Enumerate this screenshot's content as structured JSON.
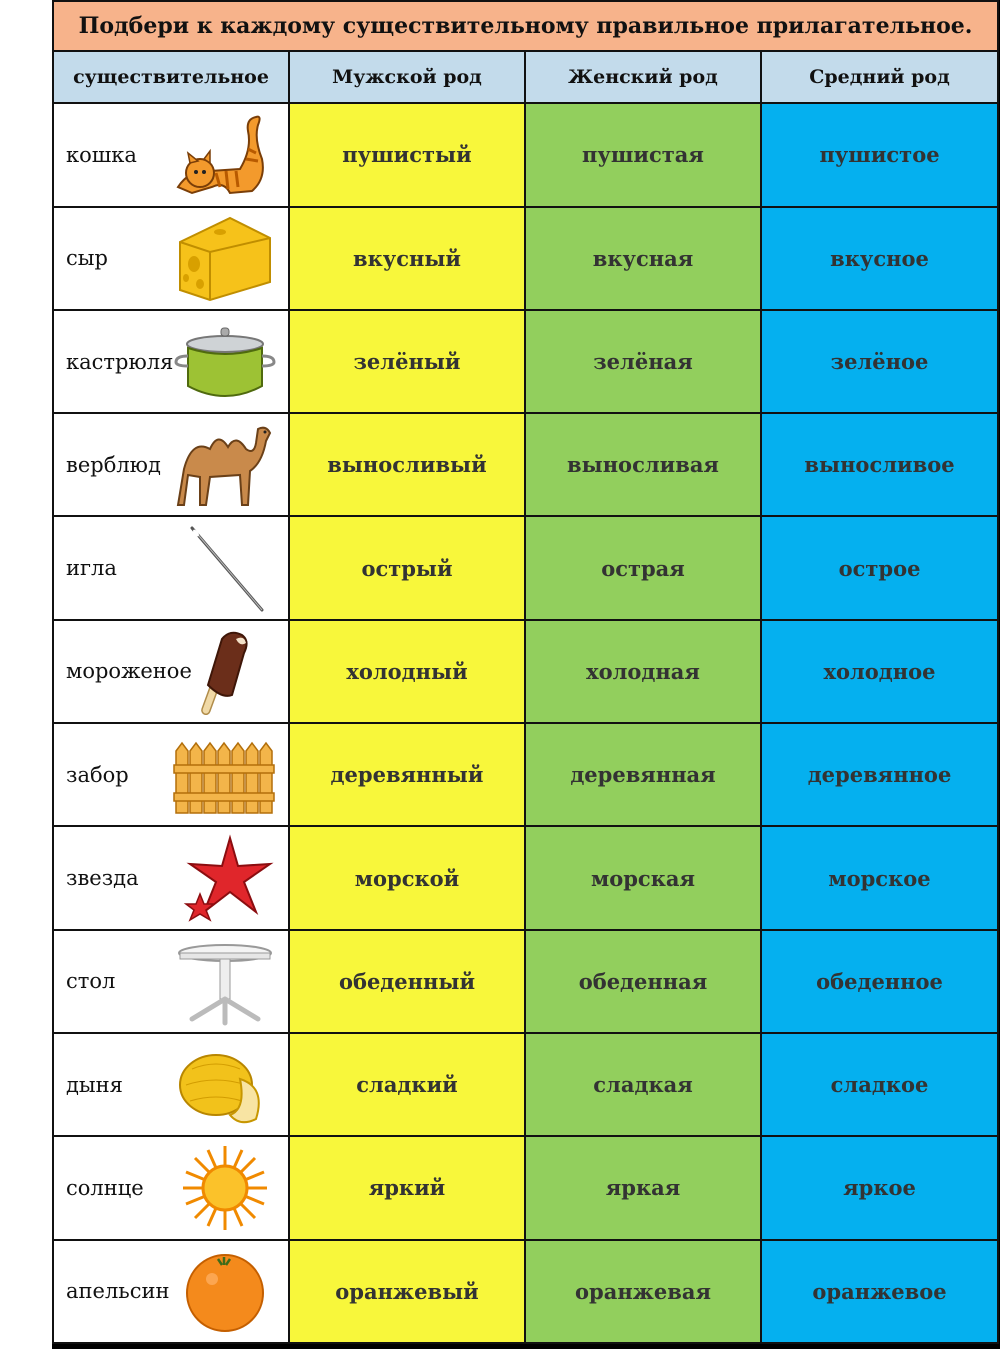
{
  "title": "Подбери к каждому существительному правильное прилагательное.",
  "headers": {
    "noun": "существительное",
    "masculine": "Мужской род",
    "feminine": "Женский род",
    "neuter": "Средний род"
  },
  "colors": {
    "title_bg": "#f7b38b",
    "header_bg": "#c3dbeb",
    "masculine_bg": "#f8f73b",
    "feminine_bg": "#92cf5d",
    "neuter_bg": "#05b0ef"
  },
  "rows": [
    {
      "noun": "кошка",
      "icon": "cat-icon",
      "m": "пушистый",
      "f": "пушистая",
      "n": "пушистое"
    },
    {
      "noun": "сыр",
      "icon": "cheese-icon",
      "m": "вкусный",
      "f": "вкусная",
      "n": "вкусное"
    },
    {
      "noun": "кастрюля",
      "icon": "pot-icon",
      "m": "зелёный",
      "f": "зелёная",
      "n": "зелёное"
    },
    {
      "noun": "верблюд",
      "icon": "camel-icon",
      "m": "выносливый",
      "f": "выносливая",
      "n": "выносливое"
    },
    {
      "noun": "игла",
      "icon": "needle-icon",
      "m": "острый",
      "f": "острая",
      "n": "острое"
    },
    {
      "noun": "мороженое",
      "icon": "ice-cream-icon",
      "m": "холодный",
      "f": "холодная",
      "n": "холодное"
    },
    {
      "noun": "забор",
      "icon": "fence-icon",
      "m": "деревянный",
      "f": "деревянная",
      "n": "деревянное"
    },
    {
      "noun": "звезда",
      "icon": "starfish-icon",
      "m": "морской",
      "f": "морская",
      "n": "морское"
    },
    {
      "noun": "стол",
      "icon": "table-icon",
      "m": "обеденный",
      "f": "обеденная",
      "n": "обеденное"
    },
    {
      "noun": "дыня",
      "icon": "melon-icon",
      "m": "сладкий",
      "f": "сладкая",
      "n": "сладкое"
    },
    {
      "noun": "солнце",
      "icon": "sun-icon",
      "m": "яркий",
      "f": "яркая",
      "n": "яркое"
    },
    {
      "noun": "апельсин",
      "icon": "orange-icon",
      "m": "оранжевый",
      "f": "оранжевая",
      "n": "оранжевое"
    }
  ]
}
